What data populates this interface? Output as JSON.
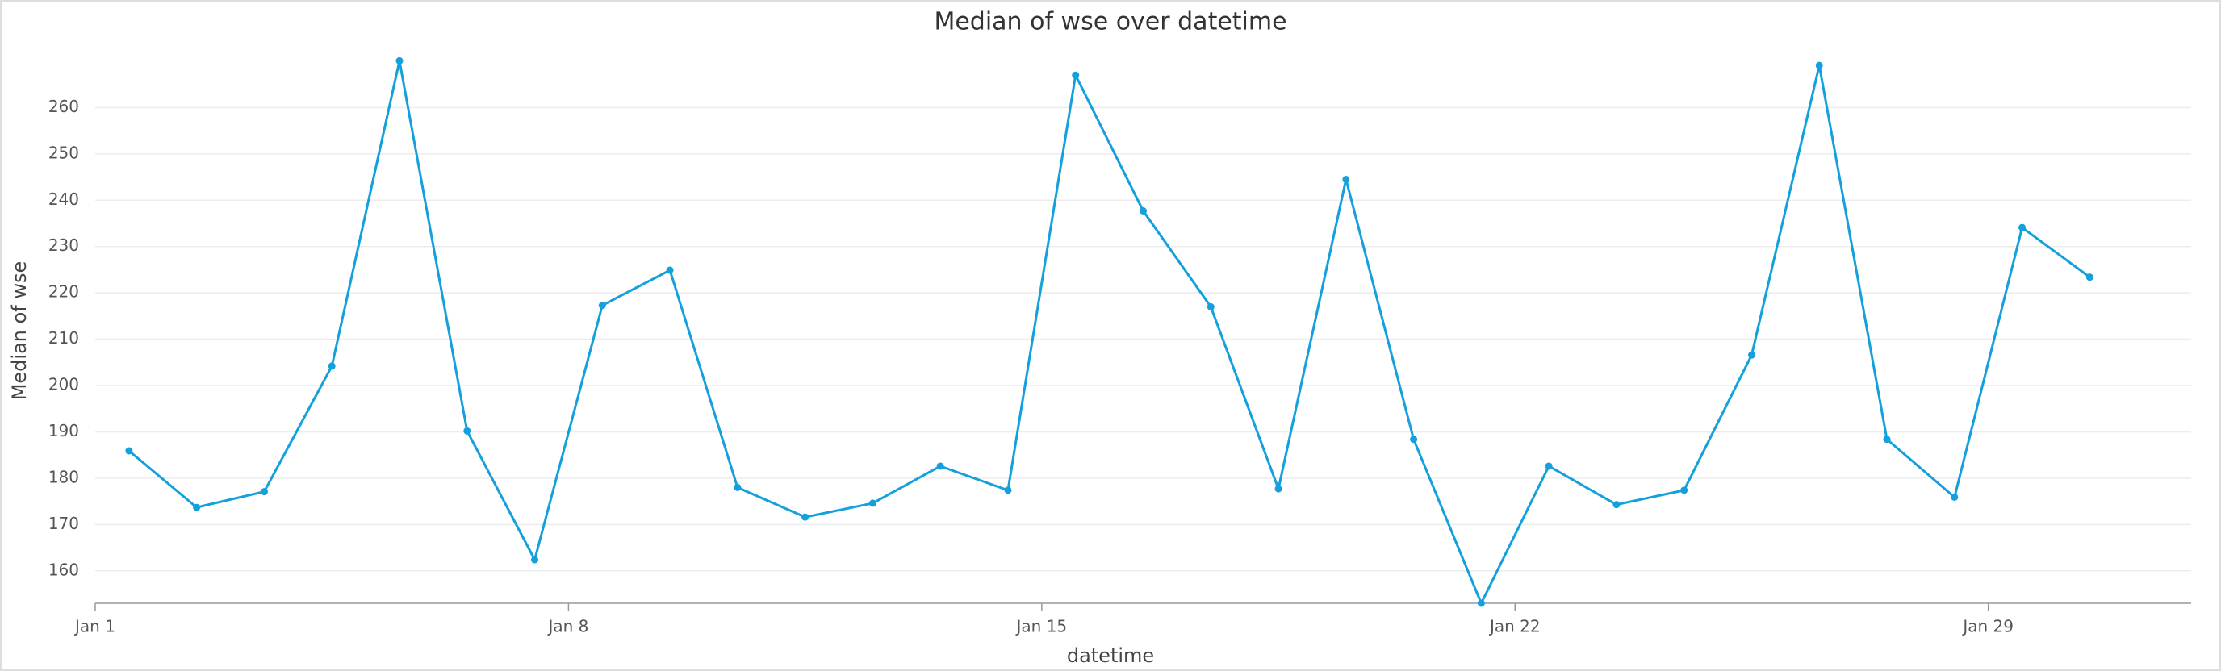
{
  "chart_data": {
    "type": "line",
    "title": "Median of wse over datetime",
    "x_label": "datetime",
    "y_label": "Median of wse",
    "categories": [
      "Jan 1",
      "Jan 2",
      "Jan 3",
      "Jan 4",
      "Jan 5",
      "Jan 6",
      "Jan 7",
      "Jan 8",
      "Jan 9",
      "Jan 10",
      "Jan 11",
      "Jan 12",
      "Jan 13",
      "Jan 14",
      "Jan 15",
      "Jan 16",
      "Jan 17",
      "Jan 18",
      "Jan 19",
      "Jan 20",
      "Jan 21",
      "Jan 22",
      "Jan 23",
      "Jan 24",
      "Jan 25",
      "Jan 26",
      "Jan 27",
      "Jan 28",
      "Jan 29",
      "Jan 30"
    ],
    "series": [
      {
        "name": "Median of wse",
        "color": "#14a0dc",
        "values": [
          185.9,
          173.7,
          177.1,
          204.2,
          270.1,
          190.2,
          162.4,
          217.3,
          224.9,
          178.0,
          171.6,
          174.6,
          182.6,
          177.4,
          267.0,
          237.7,
          217.0,
          177.7,
          244.5,
          188.4,
          153.0,
          182.6,
          174.3,
          177.4,
          206.6,
          269.1,
          188.4,
          175.9,
          234.1,
          223.4
        ]
      }
    ],
    "xticks": [
      "Jan 1",
      "Jan 8",
      "Jan 15",
      "Jan 22",
      "Jan 29"
    ],
    "ylim": [
      153,
      274
    ],
    "yticks": [
      160,
      170,
      180,
      190,
      200,
      210,
      220,
      230,
      240,
      250,
      260
    ],
    "grid": true
  }
}
